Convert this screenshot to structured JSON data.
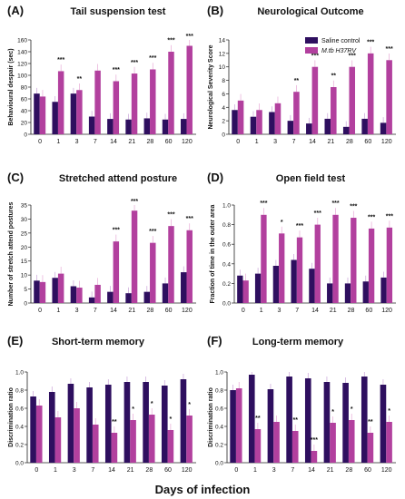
{
  "figure": {
    "common_xlabel": "Days of infection",
    "legend": {
      "items": [
        {
          "label": "Saline control",
          "italic": false,
          "color": "#2e0f5f"
        },
        {
          "label": "M.tb H37RV",
          "italic": true,
          "color": "#b2409e"
        }
      ]
    },
    "colors": {
      "control": "#2e0f5f",
      "infected": "#b2409e",
      "accent": "#e8157a"
    }
  },
  "chart_data": [
    {
      "panel": "(A)",
      "type": "bar",
      "title": "Tail suspension test",
      "ylabel": "Behavioural despair (sec)",
      "ylim": [
        0,
        160
      ],
      "yticks": [
        0,
        20,
        40,
        60,
        80,
        100,
        120,
        140,
        160
      ],
      "categories": [
        "0",
        "1",
        "3",
        "7",
        "14",
        "21",
        "28",
        "60",
        "120"
      ],
      "series": [
        {
          "name": "Saline control",
          "values": [
            69,
            55,
            69,
            30,
            26,
            25,
            27,
            25,
            26
          ]
        },
        {
          "name": "M.tb H37RV",
          "values": [
            64,
            107,
            75,
            108,
            90,
            103,
            110,
            140,
            150
          ]
        }
      ],
      "significance": [
        "",
        "***",
        "**",
        "",
        "***",
        "***",
        "***",
        "***",
        "***"
      ]
    },
    {
      "panel": "(B)",
      "type": "bar",
      "title": "Neurological Outcome",
      "ylabel": "Neurological Severity Score",
      "ylim": [
        0,
        14
      ],
      "yticks": [
        0,
        2,
        4,
        6,
        8,
        10,
        12,
        14
      ],
      "categories": [
        "0",
        "1",
        "3",
        "7",
        "14",
        "21",
        "28",
        "60",
        "120"
      ],
      "series": [
        {
          "name": "Saline control",
          "values": [
            3.6,
            2.6,
            3.3,
            2.0,
            1.6,
            2.3,
            1.1,
            2.3,
            1.7
          ]
        },
        {
          "name": "M.tb H37RV",
          "values": [
            5.0,
            3.6,
            4.6,
            6.3,
            10.0,
            7.0,
            10.0,
            12.0,
            11.0
          ]
        }
      ],
      "significance": [
        "",
        "",
        "",
        "**",
        "***",
        "**",
        "***",
        "***",
        "***"
      ]
    },
    {
      "panel": "(C)",
      "type": "bar",
      "title": "Stretched attend posture",
      "ylabel": "Number of stretch attend postures",
      "ylim": [
        0,
        35
      ],
      "yticks": [
        0,
        5,
        10,
        15,
        20,
        25,
        30,
        35
      ],
      "categories": [
        "0",
        "1",
        "3",
        "7",
        "14",
        "21",
        "28",
        "60",
        "120"
      ],
      "series": [
        {
          "name": "Saline control",
          "values": [
            8,
            9,
            6,
            2,
            4,
            3.5,
            4,
            7,
            11
          ]
        },
        {
          "name": "M.tb H37RV",
          "values": [
            7.5,
            10.5,
            5.5,
            6.5,
            22,
            33,
            21.5,
            27.5,
            26
          ]
        }
      ],
      "significance": [
        "",
        "",
        "",
        "",
        "***",
        "***",
        "***",
        "***",
        "***"
      ]
    },
    {
      "panel": "(D)",
      "type": "bar",
      "title": "Open field test",
      "ylabel": "Fraction of time in the outer area",
      "ylim": [
        0,
        1.0
      ],
      "yticks": [
        0.0,
        0.2,
        0.4,
        0.6,
        0.8,
        1.0
      ],
      "categories": [
        "0",
        "1",
        "3",
        "7",
        "14",
        "21",
        "28",
        "60",
        "120"
      ],
      "series": [
        {
          "name": "Saline control",
          "values": [
            0.28,
            0.3,
            0.38,
            0.44,
            0.35,
            0.2,
            0.2,
            0.22,
            0.26
          ]
        },
        {
          "name": "M.tb H37RV",
          "values": [
            0.23,
            0.9,
            0.71,
            0.67,
            0.8,
            0.9,
            0.87,
            0.76,
            0.77
          ]
        }
      ],
      "significance": [
        "",
        "***",
        "*",
        "***",
        "***",
        "***",
        "***",
        "***",
        "***"
      ]
    },
    {
      "panel": "(E)",
      "type": "bar",
      "title": "Short-term memory",
      "ylabel": "Discrimination ratio",
      "ylim": [
        0,
        1.0
      ],
      "yticks": [
        0.0,
        0.2,
        0.4,
        0.6,
        0.8,
        1.0
      ],
      "categories": [
        "0",
        "1",
        "3",
        "7",
        "14",
        "21",
        "28",
        "60",
        "120"
      ],
      "series": [
        {
          "name": "Saline control",
          "values": [
            0.73,
            0.78,
            0.87,
            0.83,
            0.86,
            0.89,
            0.89,
            0.85,
            0.92
          ]
        },
        {
          "name": "M.tb H37RV",
          "values": [
            0.63,
            0.5,
            0.6,
            0.42,
            0.33,
            0.47,
            0.53,
            0.36,
            0.52
          ]
        }
      ],
      "significance": [
        "",
        "",
        "",
        "",
        "**",
        "*",
        "*",
        "*",
        "*"
      ]
    },
    {
      "panel": "(F)",
      "type": "bar",
      "title": "Long-term memory",
      "ylabel": "Discrimination ratio",
      "ylim": [
        0,
        1.0
      ],
      "yticks": [
        0.0,
        0.2,
        0.4,
        0.6,
        0.8,
        1.0
      ],
      "categories": [
        "0",
        "1",
        "3",
        "7",
        "14",
        "21",
        "28",
        "60",
        "120"
      ],
      "series": [
        {
          "name": "Saline control",
          "values": [
            0.8,
            0.97,
            0.81,
            0.95,
            0.93,
            0.89,
            0.88,
            0.95,
            0.86
          ]
        },
        {
          "name": "M.tb H37RV",
          "values": [
            0.82,
            0.37,
            0.45,
            0.35,
            0.13,
            0.44,
            0.47,
            0.33,
            0.45
          ]
        }
      ],
      "significance": [
        "",
        "**",
        "",
        "**",
        "***",
        "*",
        "*",
        "**",
        "*"
      ]
    }
  ]
}
